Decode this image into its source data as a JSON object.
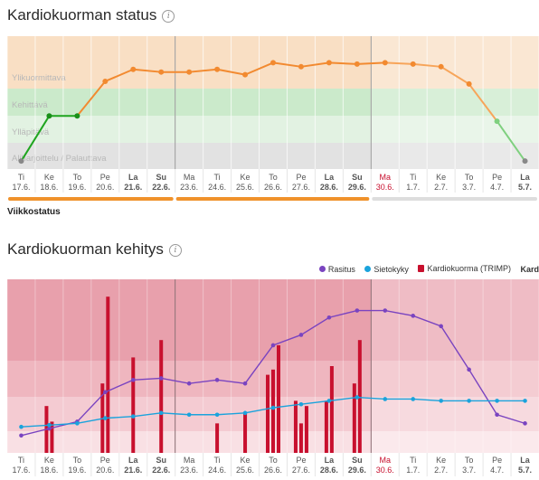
{
  "status": {
    "title": "Kardiokuorman status",
    "zones": [
      "Ylikuormittava",
      "Kehittävä",
      "Ylläpitävä",
      "Aliharjoittelu / Palauttava"
    ],
    "weekly_status_label": "Viikkostatus",
    "weekly_bar_colors": [
      "#f0922b",
      "#f0922b",
      "#dddddd"
    ]
  },
  "trend": {
    "title": "Kardiokuorman kehitys",
    "legend": {
      "rasitus": "Rasitus",
      "sietokyky": "Sietokyky",
      "kardiokuorma": "Kardiokuorma (TRIMP)",
      "cutoff": "Kard"
    }
  },
  "days": [
    {
      "wd": "Ti",
      "date": "17.6."
    },
    {
      "wd": "Ke",
      "date": "18.6."
    },
    {
      "wd": "To",
      "date": "19.6."
    },
    {
      "wd": "Pe",
      "date": "20.6."
    },
    {
      "wd": "La",
      "date": "21.6."
    },
    {
      "wd": "Su",
      "date": "22.6."
    },
    {
      "wd": "Ma",
      "date": "23.6."
    },
    {
      "wd": "Ti",
      "date": "24.6."
    },
    {
      "wd": "Ke",
      "date": "25.6."
    },
    {
      "wd": "To",
      "date": "26.6."
    },
    {
      "wd": "Pe",
      "date": "27.6."
    },
    {
      "wd": "La",
      "date": "28.6."
    },
    {
      "wd": "Su",
      "date": "29.6."
    },
    {
      "wd": "Ma",
      "date": "30.6."
    },
    {
      "wd": "Ti",
      "date": "1.7."
    },
    {
      "wd": "Ke",
      "date": "2.7."
    },
    {
      "wd": "To",
      "date": "3.7."
    },
    {
      "wd": "Pe",
      "date": "4.7."
    },
    {
      "wd": "La",
      "date": "5.7."
    }
  ],
  "highlight_day": 13,
  "status_values": [
    0.3,
    2.0,
    2.0,
    3.3,
    3.75,
    3.65,
    3.65,
    3.75,
    3.55,
    4.0,
    3.85,
    4.0,
    3.95,
    4.0,
    3.95,
    3.85,
    3.2,
    1.8,
    0.3
  ],
  "chart_data": [
    {
      "type": "line",
      "title": "Kardiokuorman status",
      "x": [
        "17.6.",
        "18.6.",
        "19.6.",
        "20.6.",
        "21.6.",
        "22.6.",
        "23.6.",
        "24.6.",
        "25.6.",
        "26.6.",
        "27.6.",
        "28.6.",
        "29.6.",
        "30.6.",
        "1.7.",
        "2.7.",
        "3.7.",
        "4.7.",
        "5.7."
      ],
      "series": [
        {
          "values": [
            0.3,
            2.0,
            2.0,
            3.3,
            3.75,
            3.65,
            3.65,
            3.75,
            3.55,
            4.0,
            3.85,
            4.0,
            3.95,
            4.0,
            3.95,
            3.85,
            3.2,
            1.8,
            0.3
          ]
        }
      ],
      "zones": [
        "Ylikuormittava",
        "Kehittävä",
        "Ylläpitävä",
        "Aliharjoittelu / Palauttava"
      ],
      "forecast_from": "30.6."
    },
    {
      "type": "bar",
      "title": "Kardiokuorman kehitys",
      "x": [
        "17.6.",
        "18.6.",
        "19.6.",
        "20.6.",
        "21.6.",
        "22.6.",
        "23.6.",
        "24.6.",
        "25.6.",
        "26.6.",
        "27.6.",
        "28.6.",
        "29.6.",
        "30.6.",
        "1.7.",
        "2.7.",
        "3.7.",
        "4.7.",
        "5.7."
      ],
      "series": [
        {
          "name": "Rasitus",
          "type": "line",
          "color": "#7a44c0",
          "values": [
            10,
            14,
            18,
            35,
            42,
            43,
            40,
            42,
            40,
            62,
            68,
            78,
            82,
            82,
            79,
            73,
            48,
            22,
            17
          ]
        },
        {
          "name": "Sietokyky",
          "type": "line",
          "color": "#1aa3dc",
          "values": [
            15,
            16,
            17,
            20,
            21,
            23,
            22,
            22,
            23,
            26,
            28,
            30,
            32,
            31,
            31,
            30,
            30,
            30,
            30
          ]
        },
        {
          "name": "Kardiokuorma (TRIMP)",
          "type": "bar",
          "color": "#c8102e",
          "bars": [
            {
              "day": 1,
              "values": [
                27,
                18
              ]
            },
            {
              "day": 3,
              "values": [
                40,
                90
              ]
            },
            {
              "day": 4,
              "values": [
                55
              ]
            },
            {
              "day": 5,
              "values": [
                65
              ]
            },
            {
              "day": 7,
              "values": [
                17
              ]
            },
            {
              "day": 8,
              "values": [
                23
              ]
            },
            {
              "day": 9,
              "values": [
                45,
                48,
                62
              ]
            },
            {
              "day": 10,
              "values": [
                30,
                17,
                27
              ]
            },
            {
              "day": 11,
              "values": [
                30,
                50
              ]
            },
            {
              "day": 12,
              "values": [
                40,
                65
              ]
            }
          ]
        }
      ],
      "forecast_from": "30.6."
    }
  ]
}
